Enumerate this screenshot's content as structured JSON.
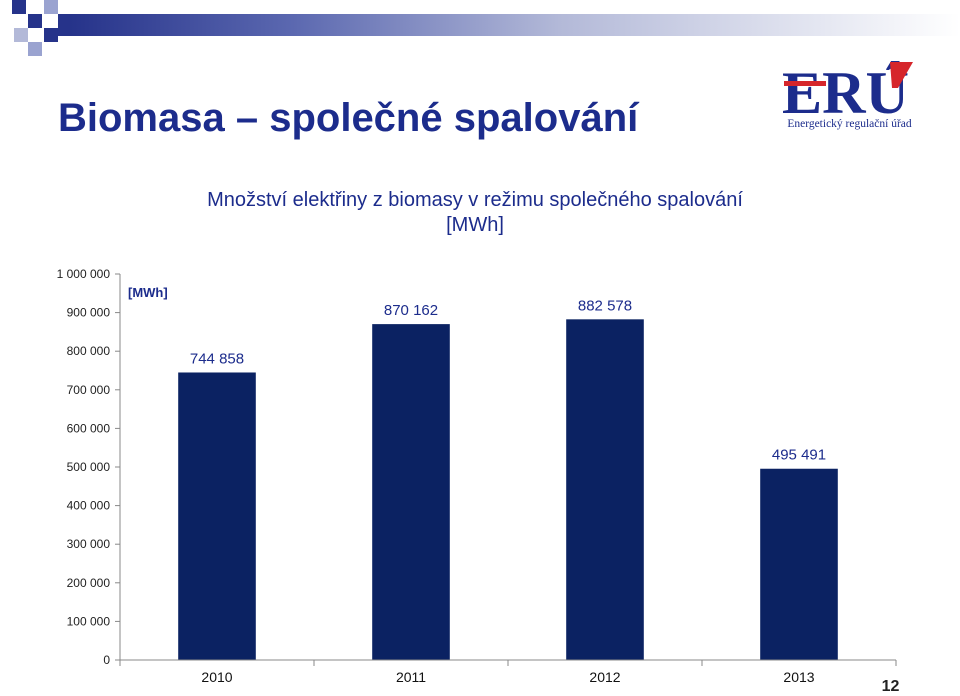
{
  "slide": {
    "title": "Biomasa – společné spalování",
    "page_number": "12"
  },
  "logo": {
    "text": "ERÚ",
    "caption": "Energetický regulační úřad",
    "colors": {
      "blue": "#1c2c8c",
      "red": "#d6262b"
    }
  },
  "colors": {
    "bar": "#0b2262",
    "text": "#1c2c8c",
    "axis": "#888888"
  },
  "chart_data": {
    "type": "bar",
    "title": "Množství elektřiny z biomasy v režimu společného spalování",
    "subtitle": "[MWh]",
    "ylabel": "[MWh]",
    "categories": [
      "2010",
      "2011",
      "2012",
      "2013"
    ],
    "values": [
      744858,
      870162,
      882578,
      495491
    ],
    "value_labels": [
      "744 858",
      "870 162",
      "882 578",
      "495 491"
    ],
    "ylim": [
      0,
      1000000
    ],
    "yticks": [
      0,
      100000,
      200000,
      300000,
      400000,
      500000,
      600000,
      700000,
      800000,
      900000,
      1000000
    ],
    "ytick_labels": [
      "0",
      "100 000",
      "200 000",
      "300 000",
      "400 000",
      "500 000",
      "600 000",
      "700 000",
      "800 000",
      "900 000",
      "1 000 000"
    ],
    "grid": false,
    "legend": "none"
  }
}
